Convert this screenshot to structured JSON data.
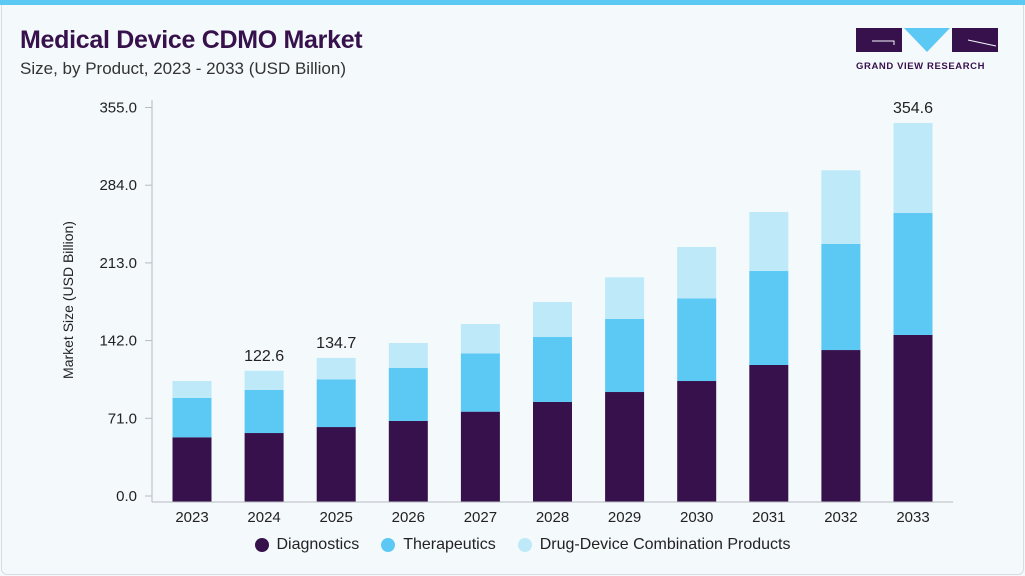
{
  "header": {
    "title": "Medical Device CDMO Market",
    "subtitle": "Size, by Product, 2023 - 2033 (USD Billion)",
    "logo_text": "GRAND VIEW RESEARCH"
  },
  "colors": {
    "diagnostics": "#37114b",
    "therapeutics": "#5cc9f5",
    "combination": "#bde9f9",
    "accent": "#5cc9f5"
  },
  "chart_data": {
    "type": "bar",
    "stacked": true,
    "title": "Medical Device CDMO Market",
    "subtitle": "Size, by Product, 2023 - 2033 (USD Billion)",
    "xlabel": "",
    "ylabel": "Market Size (USD Billion)",
    "ylim": [
      0,
      355
    ],
    "yticks": [
      "0.0",
      "71.0",
      "142.0",
      "213.0",
      "284.0",
      "355.0"
    ],
    "grid": false,
    "legend_position": "bottom",
    "categories": [
      "2023",
      "2024",
      "2025",
      "2026",
      "2027",
      "2028",
      "2029",
      "2030",
      "2031",
      "2032",
      "2033"
    ],
    "series": [
      {
        "name": "Diagnostics",
        "values": [
          60.3,
          64.3,
          69.9,
          75.6,
          84.3,
          93.4,
          102.7,
          113.0,
          128.0,
          142.0,
          156.1
        ]
      },
      {
        "name": "Therapeutics",
        "values": [
          36.8,
          40.3,
          44.7,
          49.6,
          54.6,
          60.8,
          68.4,
          77.4,
          88.0,
          99.3,
          114.2
        ]
      },
      {
        "name": "Drug-Device Combination Products",
        "values": [
          15.9,
          18.0,
          20.0,
          23.4,
          27.5,
          32.8,
          39.0,
          48.1,
          55.3,
          69.0,
          84.3
        ]
      }
    ],
    "data_labels": [
      {
        "category": "2024",
        "text": "122.6"
      },
      {
        "category": "2025",
        "text": "134.7"
      },
      {
        "category": "2033",
        "text": "354.6"
      }
    ]
  }
}
